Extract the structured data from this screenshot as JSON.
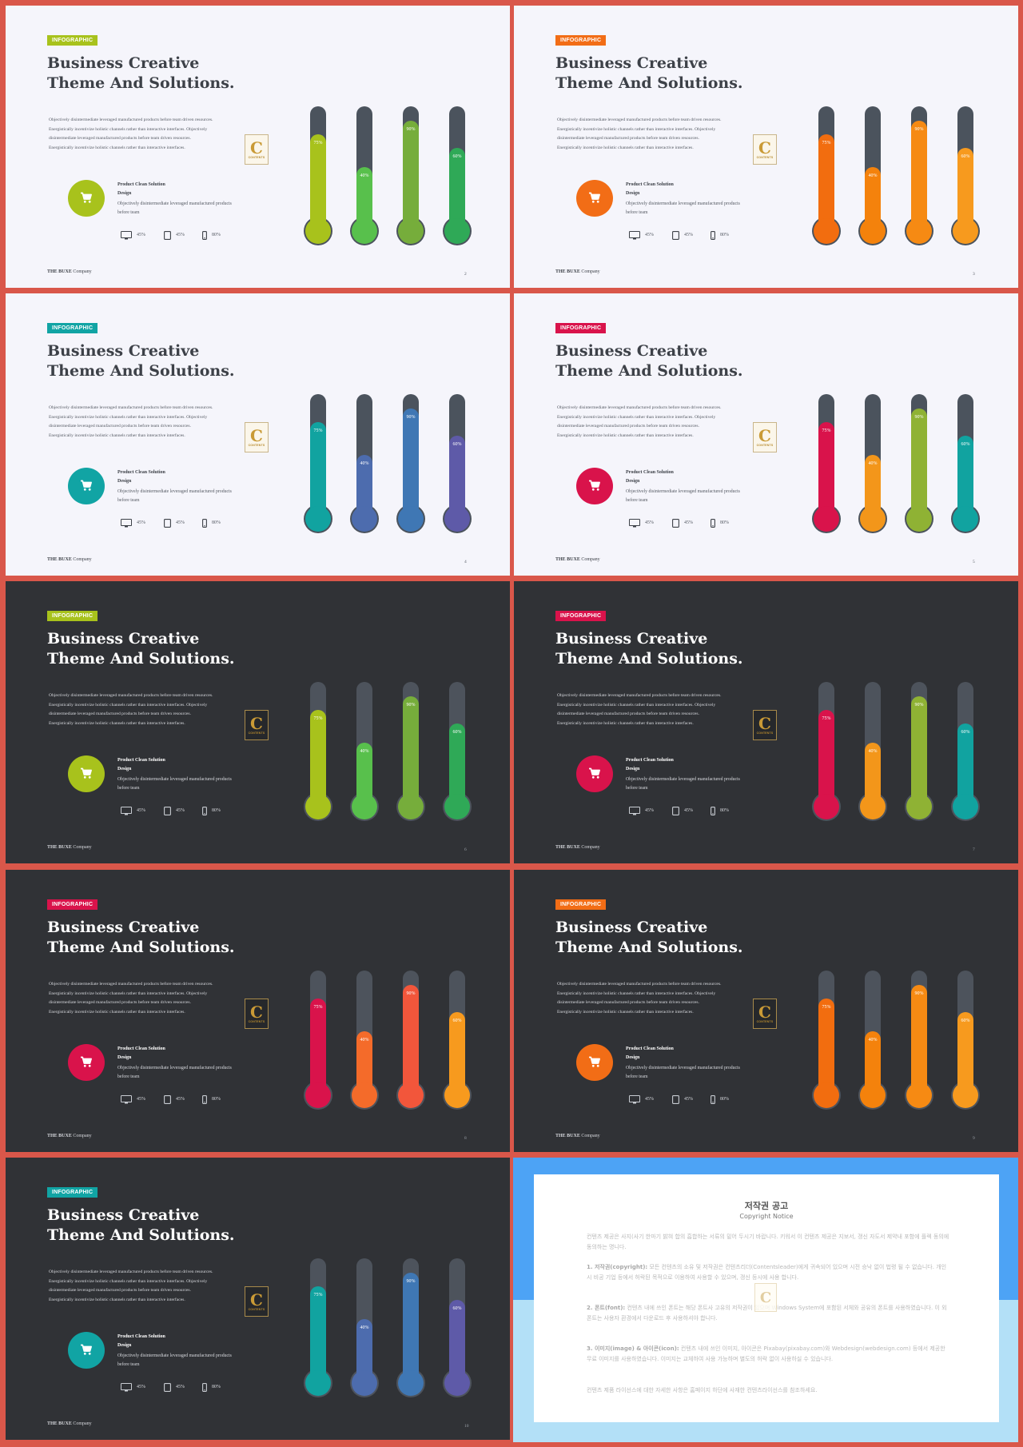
{
  "slides": [
    {
      "theme": "light",
      "tag": "INFOGRAPHIC",
      "tag_color": "#a8c21c",
      "cart_color": "#a8c21c",
      "page": "2",
      "bars": [
        {
          "value": 75,
          "label": "75%",
          "color": "#a8c21c"
        },
        {
          "value": 40,
          "label": "40%",
          "color": "#58c04c"
        },
        {
          "value": 90,
          "label": "90%",
          "color": "#76ad3b"
        },
        {
          "value": 60,
          "label": "60%",
          "color": "#2fa957"
        }
      ]
    },
    {
      "theme": "light",
      "tag": "INFOGRAPHIC",
      "tag_color": "#f26d16",
      "cart_color": "#f26d16",
      "page": "3",
      "bars": [
        {
          "value": 75,
          "label": "75%",
          "color": "#f26d0f"
        },
        {
          "value": 40,
          "label": "40%",
          "color": "#f4820c"
        },
        {
          "value": 90,
          "label": "90%",
          "color": "#f68a13"
        },
        {
          "value": 60,
          "label": "60%",
          "color": "#f79a1e"
        }
      ]
    },
    {
      "theme": "light",
      "tag": "INFOGRAPHIC",
      "tag_color": "#11a4a4",
      "cart_color": "#11a4a4",
      "page": "4",
      "bars": [
        {
          "value": 75,
          "label": "75%",
          "color": "#11a3a0"
        },
        {
          "value": 40,
          "label": "40%",
          "color": "#4d6cae"
        },
        {
          "value": 90,
          "label": "90%",
          "color": "#3f77b4"
        },
        {
          "value": 60,
          "label": "60%",
          "color": "#5e5aa8"
        }
      ]
    },
    {
      "theme": "light",
      "tag": "INFOGRAPHIC",
      "tag_color": "#d9134b",
      "cart_color": "#d9134b",
      "page": "5",
      "bars": [
        {
          "value": 75,
          "label": "75%",
          "color": "#d9134b"
        },
        {
          "value": 40,
          "label": "40%",
          "color": "#f3961a"
        },
        {
          "value": 90,
          "label": "90%",
          "color": "#8fb234"
        },
        {
          "value": 60,
          "label": "60%",
          "color": "#11a3a0"
        }
      ]
    },
    {
      "theme": "dark",
      "tag": "INFOGRAPHIC",
      "tag_color": "#a8c21c",
      "cart_color": "#a8c21c",
      "page": "6",
      "bars": [
        {
          "value": 75,
          "label": "75%",
          "color": "#a8c21c"
        },
        {
          "value": 40,
          "label": "40%",
          "color": "#58c04c"
        },
        {
          "value": 90,
          "label": "90%",
          "color": "#76ad3b"
        },
        {
          "value": 60,
          "label": "60%",
          "color": "#2fa957"
        }
      ]
    },
    {
      "theme": "dark",
      "tag": "INFOGRAPHIC",
      "tag_color": "#d9134b",
      "cart_color": "#d9134b",
      "page": "7",
      "bars": [
        {
          "value": 75,
          "label": "75%",
          "color": "#d9134b"
        },
        {
          "value": 40,
          "label": "40%",
          "color": "#f3961a"
        },
        {
          "value": 90,
          "label": "90%",
          "color": "#8fb234"
        },
        {
          "value": 60,
          "label": "60%",
          "color": "#11a3a0"
        }
      ]
    },
    {
      "theme": "dark",
      "tag": "INFOGRAPHIC",
      "tag_color": "#d9134b",
      "cart_color": "#d9134b",
      "page": "8",
      "bars": [
        {
          "value": 75,
          "label": "75%",
          "color": "#d9134b"
        },
        {
          "value": 40,
          "label": "40%",
          "color": "#f46b2a"
        },
        {
          "value": 90,
          "label": "90%",
          "color": "#f2563b"
        },
        {
          "value": 60,
          "label": "60%",
          "color": "#f79a1e"
        }
      ]
    },
    {
      "theme": "dark",
      "tag": "INFOGRAPHIC",
      "tag_color": "#f26d16",
      "cart_color": "#f26d16",
      "page": "9",
      "bars": [
        {
          "value": 75,
          "label": "75%",
          "color": "#f26d0f"
        },
        {
          "value": 40,
          "label": "40%",
          "color": "#f4820c"
        },
        {
          "value": 90,
          "label": "90%",
          "color": "#f68a13"
        },
        {
          "value": 60,
          "label": "60%",
          "color": "#f79a1e"
        }
      ]
    },
    {
      "theme": "dark",
      "tag": "INFOGRAPHIC",
      "tag_color": "#11a4a4",
      "cart_color": "#11a4a4",
      "page": "10",
      "bars": [
        {
          "value": 75,
          "label": "75%",
          "color": "#11a3a0"
        },
        {
          "value": 40,
          "label": "40%",
          "color": "#4d6cae"
        },
        {
          "value": 90,
          "label": "90%",
          "color": "#3f77b4"
        },
        {
          "value": 60,
          "label": "60%",
          "color": "#5e5aa8"
        }
      ]
    }
  ],
  "common": {
    "title_line1": "Business Creative",
    "title_line2": "Theme And Solutions.",
    "desc": [
      "Objectively disintermediate leveraged manufactured products before team driven resources.",
      "Energistically incentivize holistic channels rather than interactive interfaces. Objectively",
      "disintermediate leveraged manufactured products before team driven resources.",
      "Energistically incentivize holistic channels rather than interactive interfaces."
    ],
    "badge_glyph": "C",
    "badge_text": "CONTENTS",
    "product_title_1": "Product Clean Solution",
    "product_title_2": "Design",
    "product_desc_1": "Objectively disintermediate leveraged manufactured products",
    "product_desc_2": "before team",
    "stats": [
      {
        "icon": "monitor-icon",
        "value": "45%"
      },
      {
        "icon": "tablet-icon",
        "value": "45%"
      },
      {
        "icon": "phone-icon",
        "value": "80%"
      }
    ],
    "footer_brand": "THE BUXE",
    "footer_suffix": " Company",
    "cart_icon": "cart-icon"
  },
  "notice": {
    "title": "저작권 공고",
    "subtitle": "Copyright Notice",
    "intro": "컨텐츠 제공은 사지(사기 한마기 밝혀 합의 흡합하는 서류의 밑어 두시기 바랍니다. 키워서 이 컨텐츠 제공은 지보서, 갱신 자도서 제약내 포함에 플렉 동의에 동의하는 명니다.",
    "p1_head": "1. 저작권(copyright):",
    "p1_body": " 모든 컨텐츠의 소유 및 저작권은 컨텐츠리더(Contentsleader)에게 귀속되어 있으며 시전 승낙 없이 법령 될 수 없습니다. 개인 시 비공 기업 등에서 허락된 목적으로 이용하여 사용할 수 있으며, 갱신 등시에 사용 합니다.",
    "p2_head": "2. 폰트(font):",
    "p2_body": " 컨텐츠 내에 쓰인 폰트는 해당 폰트사 고유의 저작권이 있으며 Windows System에 포함된 서체와 공유의 폰트를 사용하였습니다. 이 외 폰트는 사용자 환경에서 다운로드 후 사용하셔야 합니다.",
    "p3_head": "3. 이미지(image) & 아이콘(icon):",
    "p3_body": " 컨텐츠 내에 쓰인 이미지, 아이콘은 Pixabay(pixabay.com)와 Webdesign(webdesign.com) 등에서 제공한 무료 이미지를 사용하였습니다. 이미지는 교체하여 사용 가능하며 별도의 허락 없이 사용하실 수 있습니다.",
    "outro": "컨텐츠 제품 라이선스에 대한 자세한 사항은 홈페이지 하단에 사재한 컨텐츠라이선스를 참조하세요.",
    "watermark_glyph": "C"
  }
}
